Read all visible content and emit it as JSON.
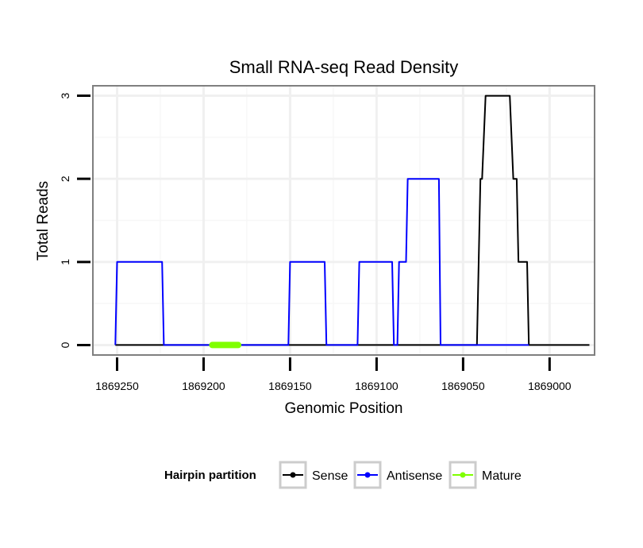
{
  "chart_data": {
    "type": "line",
    "title": "Small RNA-seq Read Density",
    "xlabel": "Genomic Position",
    "ylabel": "Total Reads",
    "x_reversed": true,
    "xlim": [
      1869264,
      1868974
    ],
    "ylim": [
      -0.12,
      3.12
    ],
    "xticks": [
      1869250,
      1869200,
      1869150,
      1869100,
      1869050,
      1869000
    ],
    "xtick_labels": [
      "1869250",
      "1869200",
      "1869150",
      "1869100",
      "1869050",
      "1869000"
    ],
    "yticks": [
      0,
      1,
      2,
      3
    ],
    "ytick_labels": [
      "0",
      "1",
      "2",
      "3"
    ],
    "grid": true,
    "legend": {
      "position": "bottom",
      "title": "Hairpin partition",
      "entries": [
        "Sense",
        "Antisense",
        "Mature"
      ]
    },
    "series": [
      {
        "name": "Sense",
        "color": "#000000",
        "points": [
          [
            1869251,
            0
          ],
          [
            1869042,
            0
          ],
          [
            1869040,
            2
          ],
          [
            1869039,
            2
          ],
          [
            1869037,
            3
          ],
          [
            1869023,
            3
          ],
          [
            1869021,
            2
          ],
          [
            1869019,
            2
          ],
          [
            1869018,
            1
          ],
          [
            1869013,
            1
          ],
          [
            1869012,
            0
          ],
          [
            1868977,
            0
          ]
        ]
      },
      {
        "name": "Antisense",
        "color": "#0000ff",
        "points": [
          [
            1869251,
            0
          ],
          [
            1869250,
            1
          ],
          [
            1869224,
            1
          ],
          [
            1869223,
            0
          ],
          [
            1869151,
            0
          ],
          [
            1869150,
            1
          ],
          [
            1869130,
            1
          ],
          [
            1869129,
            0
          ],
          [
            1869111,
            0
          ],
          [
            1869110,
            1
          ],
          [
            1869091,
            1
          ],
          [
            1869090,
            0
          ],
          [
            1869088,
            0
          ],
          [
            1869087,
            1
          ],
          [
            1869083,
            1
          ],
          [
            1869082,
            2
          ],
          [
            1869064,
            2
          ],
          [
            1869063,
            0
          ],
          [
            1869012,
            0
          ]
        ]
      },
      {
        "name": "Mature",
        "color": "#7fff00",
        "points": [
          [
            1869195,
            0
          ],
          [
            1869180,
            0
          ]
        ]
      }
    ]
  }
}
